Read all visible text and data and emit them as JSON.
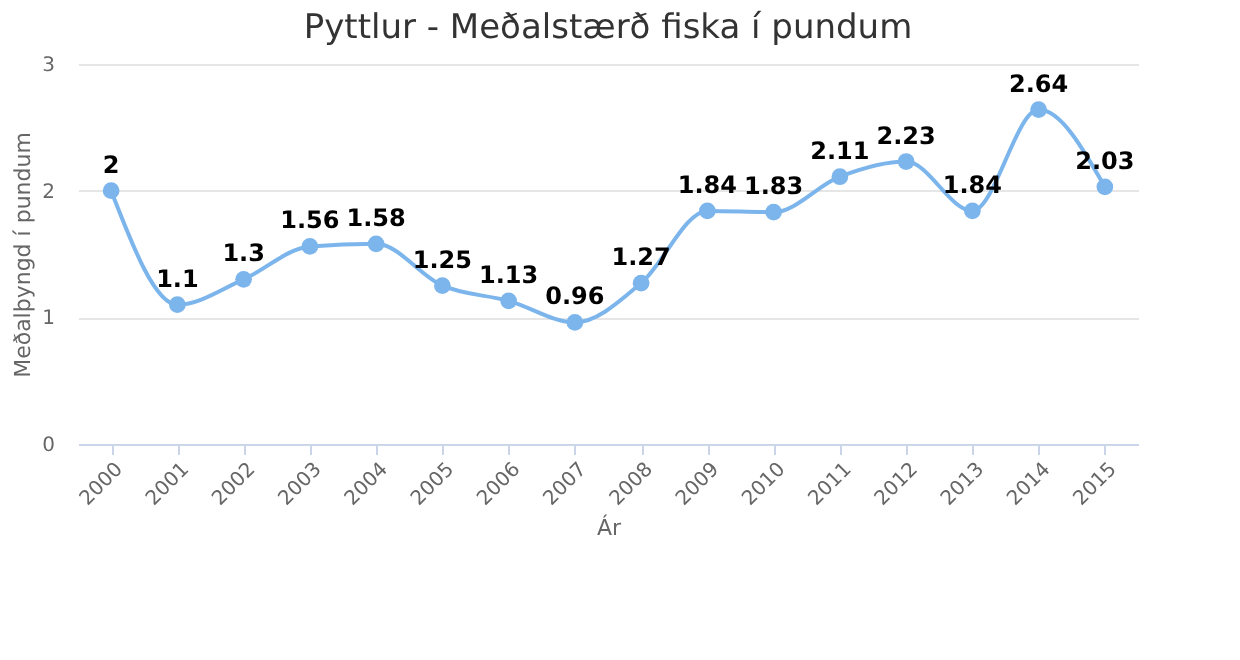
{
  "chart_data": {
    "type": "line",
    "title": "Pyttlur - Meðalstærð fiska í pundum",
    "xlabel": "Ár",
    "ylabel": "Meðalþyngd í pundum",
    "categories": [
      "2000",
      "2001",
      "2002",
      "2003",
      "2004",
      "2005",
      "2006",
      "2007",
      "2008",
      "2009",
      "2010",
      "2011",
      "2012",
      "2013",
      "2014",
      "2015"
    ],
    "series": [
      {
        "color": "#7cb5ec",
        "values": [
          2,
          1.1,
          1.3,
          1.56,
          1.58,
          1.25,
          1.13,
          0.96,
          1.27,
          1.84,
          1.83,
          2.11,
          2.23,
          1.84,
          2.64,
          2.03
        ]
      }
    ],
    "ylim": [
      0,
      3
    ],
    "yticks": [
      0,
      1,
      2,
      3
    ],
    "grid": "y",
    "marker": "circle",
    "line_style": "solid",
    "data_labels": true
  }
}
